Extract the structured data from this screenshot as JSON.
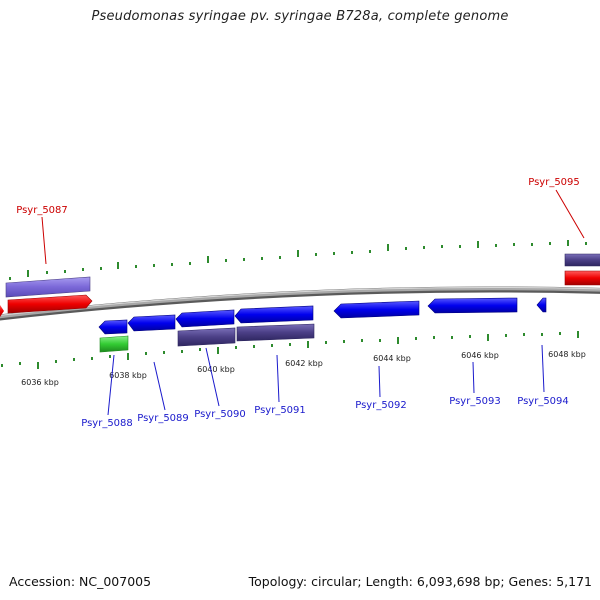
{
  "title": "Pseudomonas syringae pv. syringae B728a, complete genome",
  "footer": {
    "accession": "Accession: NC_007005",
    "topology": "Topology: circular; Length: 6,093,698 bp; Genes: 5,171"
  },
  "colors": {
    "forward_cds": "#ff0000",
    "reverse_cds": "#0000ff",
    "gene_forward": "#7b68d8",
    "gene_reverse": "#4b3f86",
    "rna": "#33cc33",
    "backbone": "#8a8a8a",
    "ticks": "#2e8b2e",
    "label_forward": "#cc0000",
    "label_reverse": "#1a1acc"
  },
  "scale_labels": [
    "6036 kbp",
    "6038 kbp",
    "6040 kbp",
    "6042 kbp",
    "6044 kbp",
    "6046 kbp",
    "6048 kbp"
  ],
  "gene_labels": {
    "forward": [
      "Psyr_5087",
      "Psyr_5095"
    ],
    "reverse": [
      "Psyr_5088",
      "Psyr_5089",
      "Psyr_5090",
      "Psyr_5091",
      "Psyr_5092",
      "Psyr_5093",
      "Psyr_5094"
    ]
  }
}
